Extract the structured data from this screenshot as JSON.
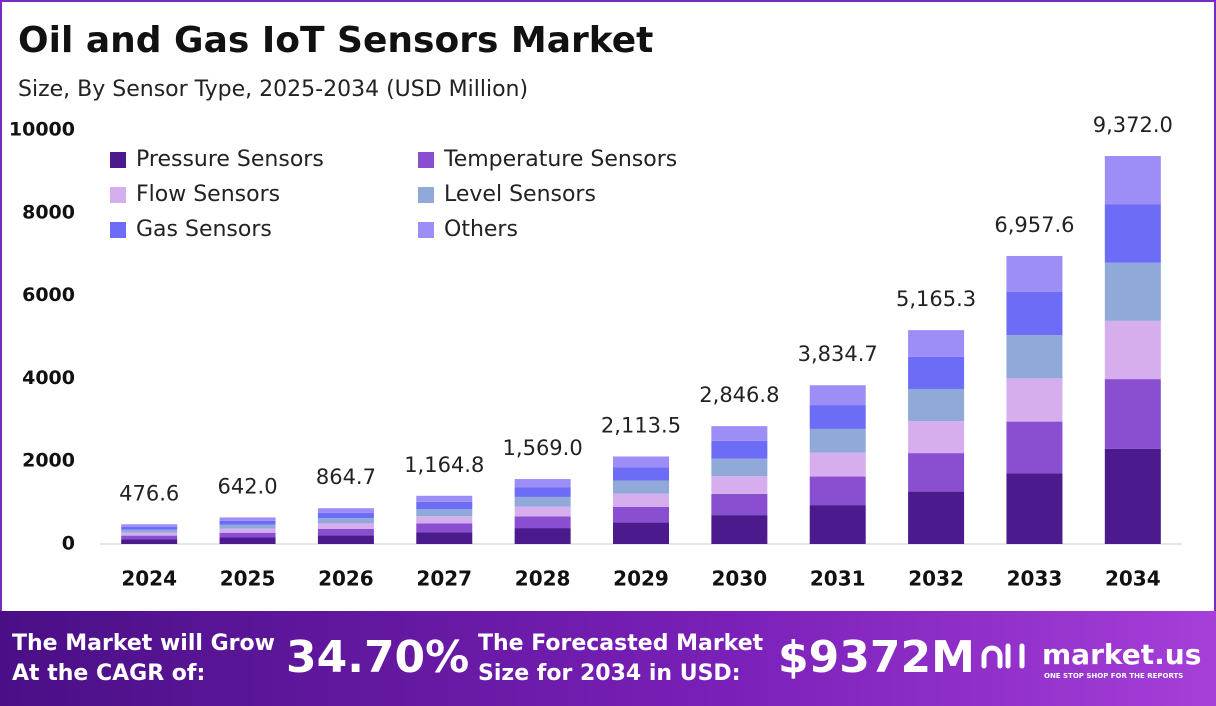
{
  "chart_data": {
    "type": "stacked_bar",
    "title": "Oil and Gas IoT Sensors Market",
    "subtitle": "Size, By Sensor Type, 2025-2034 (USD Million)",
    "categories": [
      "2024",
      "2025",
      "2026",
      "2027",
      "2028",
      "2029",
      "2030",
      "2031",
      "2032",
      "2033",
      "2034"
    ],
    "series": [
      {
        "name": "Pressure Sensors",
        "color": "#4b1a8c",
        "values": [
          116.8,
          157.3,
          211.9,
          285.4,
          384.4,
          517.8,
          697.5,
          939.5,
          1265.5,
          1704.6,
          2296.1
        ]
      },
      {
        "name": "Temperature Sensors",
        "color": "#8a4fd0",
        "values": [
          85.8,
          115.6,
          155.6,
          209.7,
          282.4,
          380.4,
          512.4,
          690.2,
          929.8,
          1252.4,
          1687.0
        ]
      },
      {
        "name": "Flow Sensors",
        "color": "#d6aeee",
        "values": [
          71.5,
          96.3,
          129.7,
          174.7,
          235.4,
          317.0,
          427.0,
          575.2,
          774.8,
          1043.6,
          1405.8
        ]
      },
      {
        "name": "Level Sensors",
        "color": "#90a9d9",
        "values": [
          71.5,
          96.3,
          129.7,
          174.7,
          235.4,
          317.0,
          427.0,
          575.2,
          774.8,
          1043.6,
          1405.8
        ]
      },
      {
        "name": "Gas Sensors",
        "color": "#6c6cf6",
        "values": [
          71.5,
          96.3,
          129.7,
          174.7,
          235.4,
          317.0,
          427.0,
          575.2,
          774.8,
          1043.6,
          1405.8
        ]
      },
      {
        "name": "Others",
        "color": "#9c8ef6",
        "values": [
          59.5,
          80.2,
          108.1,
          145.6,
          196.0,
          264.3,
          355.9,
          479.4,
          645.6,
          869.8,
          1171.5
        ]
      }
    ],
    "totals": [
      476.6,
      642.0,
      864.7,
      1164.8,
      1569.0,
      2113.5,
      2846.8,
      3834.7,
      5165.3,
      6957.6,
      9372.0
    ],
    "total_labels": [
      "476.6",
      "642.0",
      "864.7",
      "1,164.8",
      "1,569.0",
      "2,113.5",
      "2,846.8",
      "3,834.7",
      "5,165.3",
      "6,957.6",
      "9,372.0"
    ],
    "ylim": [
      0,
      10000
    ],
    "yticks": [
      0,
      2000,
      4000,
      6000,
      8000,
      10000
    ],
    "grid": false
  },
  "footer": {
    "cagr_text": [
      "The Market will Grow",
      "At the CAGR of:"
    ],
    "cagr": "34.70%",
    "forecast_text": [
      "The Forecasted Market",
      "Size for 2034 in USD:"
    ],
    "forecast": "$9372M",
    "brand": "market.us",
    "tagline": "ONE STOP SHOP FOR THE REPORTS"
  }
}
